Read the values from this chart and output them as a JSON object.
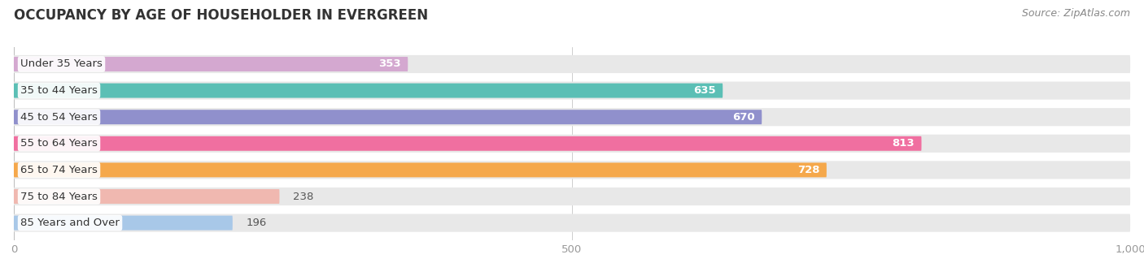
{
  "title": "OCCUPANCY BY AGE OF HOUSEHOLDER IN EVERGREEN",
  "source": "Source: ZipAtlas.com",
  "categories": [
    "Under 35 Years",
    "35 to 44 Years",
    "45 to 54 Years",
    "55 to 64 Years",
    "65 to 74 Years",
    "75 to 84 Years",
    "85 Years and Over"
  ],
  "values": [
    353,
    635,
    670,
    813,
    728,
    238,
    196
  ],
  "bar_colors": [
    "#d4a8d0",
    "#5bbfb5",
    "#9090cc",
    "#f06fa0",
    "#f5a84b",
    "#f0b8b0",
    "#a8c8e8"
  ],
  "bar_bg_color": "#e8e8e8",
  "xlim_max": 1000,
  "xticks": [
    0,
    500,
    1000
  ],
  "xtick_labels": [
    "0",
    "500",
    "1,000"
  ],
  "title_fontsize": 12,
  "label_fontsize": 9.5,
  "value_fontsize": 9.5,
  "source_fontsize": 9,
  "fig_bg_color": "#ffffff"
}
